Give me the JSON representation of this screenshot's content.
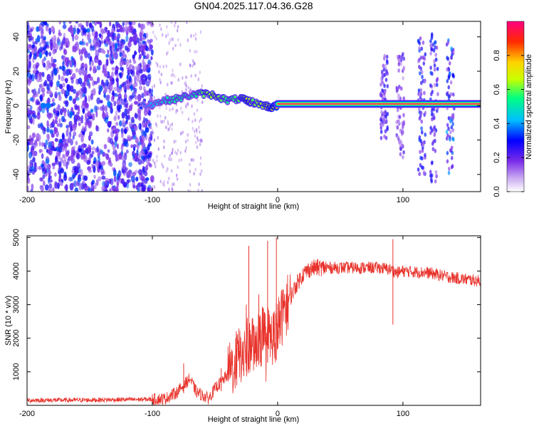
{
  "figure": {
    "title": "GN04.2025.117.04.36.G28"
  },
  "chart_data": [
    {
      "type": "heatmap",
      "name": "spectrogram",
      "xlabel": "Height of straight line (km)",
      "ylabel": "Frequency (Hz)",
      "xlim": [
        -200,
        162
      ],
      "ylim": [
        -50,
        49
      ],
      "x_ticks": [
        -200,
        -100,
        0,
        100
      ],
      "y_ticks": [
        -40,
        -20,
        0,
        20,
        40
      ],
      "colorbar": {
        "label": "Normalized spectral amplitude",
        "range": [
          0,
          1
        ],
        "ticks": [
          "0.0",
          "0.2",
          "0.4",
          "0.6",
          "0.8"
        ],
        "colormap": [
          "#ffffff",
          "#c9a9f0",
          "#7a2bea",
          "#0000ff",
          "#00bfff",
          "#00ff80",
          "#c8ff00",
          "#ffd200",
          "#ff2a00",
          "#ff0080"
        ]
      },
      "features": {
        "carrier_line": {
          "x_start": 0,
          "x_end": 162,
          "frequency_hz": 1,
          "amplitude": 1.0
        },
        "carrier_segments": [
          {
            "x": -110,
            "frequency_hz": 0,
            "amplitude": 0.35
          },
          {
            "x": -100,
            "frequency_hz": 1,
            "amplitude": 0.45
          },
          {
            "x": -90,
            "frequency_hz": 3,
            "amplitude": 0.5
          },
          {
            "x": -80,
            "frequency_hz": 4,
            "amplitude": 0.55
          },
          {
            "x": -70,
            "frequency_hz": 6,
            "amplitude": 0.5
          },
          {
            "x": -60,
            "frequency_hz": 7,
            "amplitude": 0.6
          },
          {
            "x": -50,
            "frequency_hz": 6,
            "amplitude": 0.65
          },
          {
            "x": -40,
            "frequency_hz": 3,
            "amplitude": 0.55
          },
          {
            "x": -30,
            "frequency_hz": 4,
            "amplitude": 0.6
          },
          {
            "x": -25,
            "frequency_hz": 3,
            "amplitude": 0.7
          },
          {
            "x": -20,
            "frequency_hz": 2,
            "amplitude": 0.6
          },
          {
            "x": -10,
            "frequency_hz": 0,
            "amplitude": 0.65
          },
          {
            "x": -5,
            "frequency_hz": -1,
            "amplitude": 0.7
          },
          {
            "x": 0,
            "frequency_hz": 0,
            "amplitude": 0.8
          }
        ],
        "noise_region": {
          "x_start": -200,
          "x_end": -100,
          "amplitude": 0.3
        },
        "bursts": [
          {
            "x": 85,
            "f_range": [
              -20,
              30
            ],
            "amplitude": 0.3
          },
          {
            "x": 98,
            "f_range": [
              -30,
              30
            ],
            "amplitude": 0.25
          },
          {
            "x": 115,
            "f_range": [
              -40,
              40
            ],
            "amplitude": 0.35
          },
          {
            "x": 125,
            "f_range": [
              -45,
              45
            ],
            "amplitude": 0.35
          },
          {
            "x": 138,
            "f_range": [
              -40,
              40
            ],
            "amplitude": 0.4
          }
        ]
      }
    },
    {
      "type": "line",
      "name": "snr",
      "xlabel": "Height of straight line (km)",
      "ylabel": "SNR (10 * v/v)",
      "xlim": [
        -200,
        162
      ],
      "ylim": [
        0,
        5050
      ],
      "x_ticks": [
        -200,
        -100,
        0,
        100
      ],
      "y_ticks": [
        1000,
        2000,
        3000,
        4000,
        5000
      ],
      "line_color": "#e8312a",
      "envelope": {
        "x": [
          -200,
          -150,
          -100,
          -90,
          -80,
          -75,
          -70,
          -65,
          -60,
          -55,
          -50,
          -45,
          -40,
          -35,
          -30,
          -25,
          -20,
          -15,
          -10,
          -5,
          0,
          5,
          10,
          15,
          20,
          25,
          30,
          40,
          60,
          80,
          90,
          95,
          100,
          120,
          140,
          162
        ],
        "y": [
          150,
          160,
          180,
          200,
          400,
          600,
          800,
          400,
          300,
          200,
          500,
          700,
          900,
          1200,
          1500,
          1700,
          1900,
          2000,
          2200,
          2000,
          2300,
          2800,
          3200,
          3600,
          3900,
          4050,
          4100,
          4100,
          4100,
          4100,
          4050,
          3950,
          4000,
          3950,
          3800,
          3700
        ]
      },
      "spikes": [
        {
          "x": -75,
          "y": 1250
        },
        {
          "x": -45,
          "y": 1100
        },
        {
          "x": -33,
          "y": 2200
        },
        {
          "x": -25,
          "y": 3000
        },
        {
          "x": -23,
          "y": 4750
        },
        {
          "x": -15,
          "y": 3300
        },
        {
          "x": -8,
          "y": 4900
        },
        {
          "x": -1,
          "y": 5000
        },
        {
          "x": 92,
          "y": 4950
        }
      ]
    }
  ]
}
